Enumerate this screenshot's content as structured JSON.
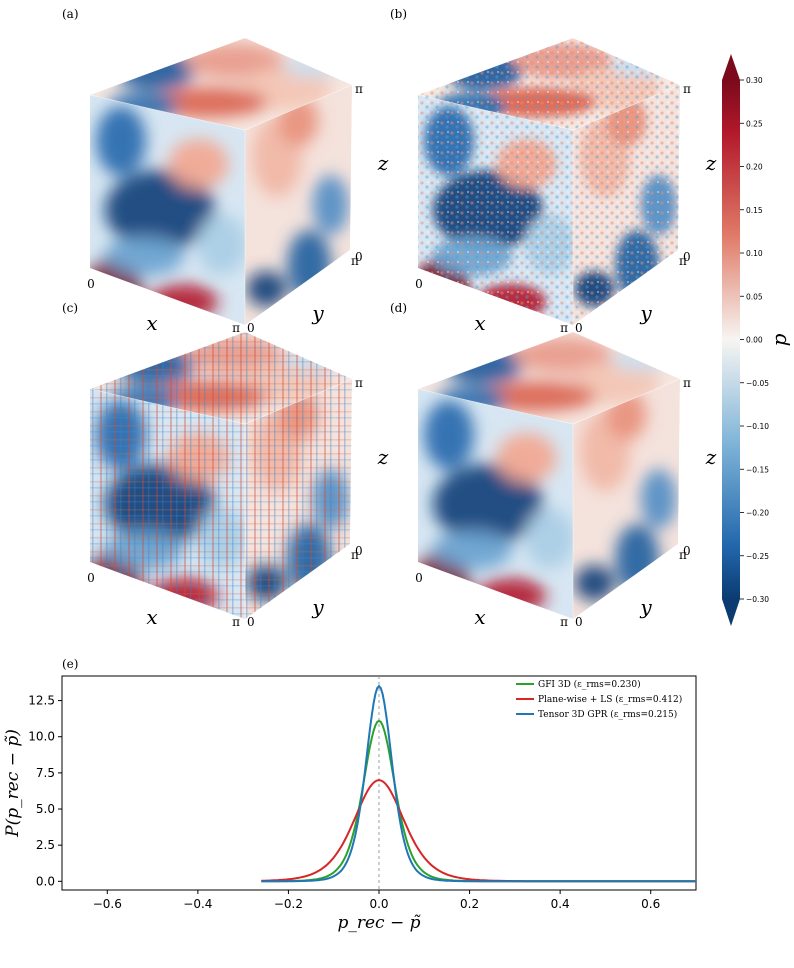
{
  "panels": {
    "a": {
      "label": "(a)",
      "x": "x",
      "y": "y",
      "z": "z",
      "t0": "0",
      "tpi": "π",
      "t0b": "0",
      "tpib": "π",
      "t0c": "0",
      "tpic": "π"
    },
    "b": {
      "label": "(b)",
      "x": "x",
      "y": "y",
      "z": "z",
      "t0": "0",
      "tpi": "π",
      "t0b": "0",
      "tpib": "π",
      "t0c": "0",
      "tpic": "π"
    },
    "c": {
      "label": "(c)",
      "x": "x",
      "y": "y",
      "z": "z",
      "t0": "0",
      "tpi": "π",
      "t0b": "0",
      "tpib": "π",
      "t0c": "0",
      "tpic": "π"
    },
    "d": {
      "label": "(d)",
      "x": "x",
      "y": "y",
      "z": "z",
      "t0": "0",
      "tpi": "π",
      "t0b": "0",
      "tpib": "π",
      "t0c": "0",
      "tpic": "π"
    },
    "e": {
      "label": "(e)"
    }
  },
  "colorbar": {
    "label": "p",
    "range": [
      -0.3,
      0.3
    ],
    "colormap": "RdBu_r",
    "ticks": [
      "0.30",
      "0.25",
      "0.20",
      "0.15",
      "0.10",
      "0.05",
      "0.00",
      "−0.05",
      "−0.10",
      "−0.15",
      "−0.20",
      "−0.25",
      "−0.30"
    ],
    "colors": {
      "low": "#0b3b70",
      "mid": "#f7f5f2",
      "high": "#7a0a1c"
    }
  },
  "chart_data": {
    "type": "line",
    "xlabel": "p_rec − p̃",
    "ylabel": "P(p_rec − p̃)",
    "xlim": [
      -0.7,
      0.7
    ],
    "ylim": [
      -0.6,
      14.2
    ],
    "xticks": [
      "−0.6",
      "−0.4",
      "−0.2",
      "0.0",
      "0.2",
      "0.4",
      "0.6"
    ],
    "yticks": [
      "0.0",
      "2.5",
      "5.0",
      "7.5",
      "10.0",
      "12.5"
    ],
    "vline_x": 0.0,
    "legend_position": "top-right",
    "series": [
      {
        "name": "GFI 3D (ε_rms=0.230)",
        "color": "#2ca02c",
        "peak": 11.1,
        "sigma": 0.036,
        "x": [
          -0.26,
          0.7
        ]
      },
      {
        "name": "Plane-wise + LS (ε_rms=0.412)",
        "color": "#d62728",
        "peak": 7.0,
        "sigma": 0.057,
        "x": [
          -0.26,
          0.7
        ]
      },
      {
        "name": "Tensor 3D GPR (ε_rms=0.215)",
        "color": "#1f77b4",
        "peak": 13.5,
        "sigma": 0.03,
        "x": [
          -0.26,
          0.7
        ]
      }
    ]
  }
}
